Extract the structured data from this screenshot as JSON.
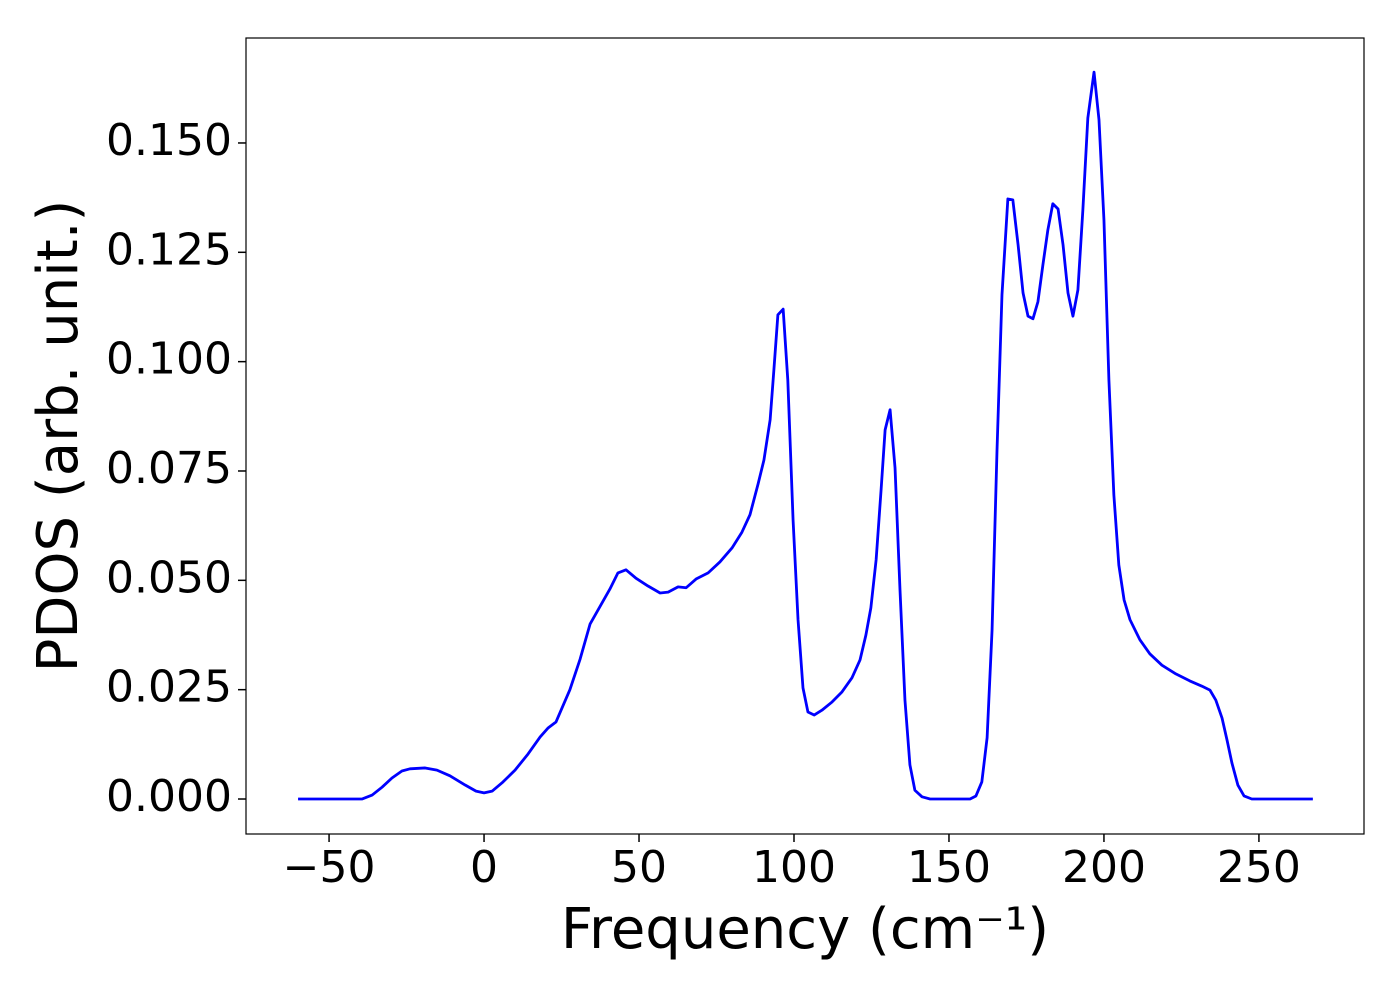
{
  "chart_data": {
    "type": "line",
    "xlabel": "Frequency (cm⁻¹)",
    "ylabel": "PDOS (arb. unit.)",
    "color": "#0000ff",
    "x": [
      -60,
      -39.4,
      -36.1,
      -32.9,
      -29.7,
      -26.5,
      -23.9,
      -19,
      -15.2,
      -11,
      -6.1,
      -2.6,
      0,
      2.6,
      5.8,
      10,
      14.2,
      18.1,
      20.6,
      23.2,
      27.7,
      31,
      34.2,
      37.4,
      40.6,
      43.2,
      45.8,
      49,
      52.9,
      56.8,
      59.4,
      62.6,
      65.2,
      68.4,
      72.3,
      76.1,
      80,
      83.2,
      85.8,
      88.4,
      90.3,
      92.3,
      93.5,
      94.8,
      96.5,
      98,
      99.7,
      101.3,
      102.9,
      104.5,
      106.5,
      109,
      112.3,
      115.5,
      118.7,
      121.3,
      123.2,
      124.8,
      126.5,
      128.1,
      129.4,
      131,
      132.6,
      134.2,
      135.8,
      137.4,
      139,
      141.3,
      143.9,
      156.8,
      158.7,
      160.6,
      162.3,
      163.9,
      165.5,
      167.1,
      169,
      170.6,
      172.3,
      173.9,
      175.5,
      177.1,
      178.7,
      180.3,
      181.9,
      183.5,
      185.2,
      186.8,
      188.4,
      190,
      191.6,
      193.2,
      194.8,
      196.8,
      198.4,
      200,
      201.6,
      203.2,
      204.8,
      206.5,
      208.4,
      211.6,
      214.8,
      218.7,
      223.2,
      227.7,
      231.6,
      234.2,
      236.1,
      238.1,
      239.7,
      241.3,
      243.2,
      245.2,
      247.7,
      267.4
    ],
    "values": [
      0,
      0,
      0.0009,
      0.0027,
      0.0048,
      0.0064,
      0.0069,
      0.0071,
      0.0066,
      0.0053,
      0.0032,
      0.0018,
      0.0014,
      0.0018,
      0.0037,
      0.0066,
      0.0103,
      0.0142,
      0.0162,
      0.0176,
      0.025,
      0.032,
      0.04,
      0.044,
      0.048,
      0.0517,
      0.0524,
      0.0505,
      0.0487,
      0.0471,
      0.0473,
      0.0485,
      0.0483,
      0.0503,
      0.0517,
      0.0542,
      0.0574,
      0.061,
      0.065,
      0.072,
      0.0775,
      0.0867,
      0.098,
      0.1107,
      0.112,
      0.0958,
      0.0638,
      0.041,
      0.0254,
      0.0199,
      0.0192,
      0.0203,
      0.0222,
      0.0245,
      0.0277,
      0.0318,
      0.0375,
      0.0437,
      0.0547,
      0.0707,
      0.0844,
      0.089,
      0.0757,
      0.0478,
      0.0226,
      0.0078,
      0.002,
      0.0005,
      0,
      0,
      0.0007,
      0.0039,
      0.014,
      0.0386,
      0.0798,
      0.1153,
      0.1372,
      0.137,
      0.1267,
      0.1157,
      0.1104,
      0.1098,
      0.1137,
      0.1221,
      0.1301,
      0.1361,
      0.1349,
      0.1267,
      0.1157,
      0.1104,
      0.1164,
      0.1347,
      0.1557,
      0.1662,
      0.1553,
      0.1324,
      0.0958,
      0.0695,
      0.0535,
      0.0455,
      0.041,
      0.0364,
      0.0332,
      0.0306,
      0.0286,
      0.027,
      0.0258,
      0.0249,
      0.0226,
      0.0185,
      0.0135,
      0.0082,
      0.0032,
      0.0007,
      0,
      0
    ],
    "xlim": [
      -76.8,
      283.9
    ],
    "ylim": [
      -0.008,
      0.174
    ],
    "xticks": [
      {
        "value": -50,
        "label": "−50"
      },
      0,
      50,
      100,
      150,
      200,
      250
    ],
    "yticks": [
      {
        "value": 0,
        "label": "0.000"
      },
      {
        "value": 0.025,
        "label": "0.025"
      },
      {
        "value": 0.05,
        "label": "0.050"
      },
      {
        "value": 0.075,
        "label": "0.075"
      },
      {
        "value": 0.1,
        "label": "0.100"
      },
      {
        "value": 0.125,
        "label": "0.125"
      },
      {
        "value": 0.15,
        "label": "0.150"
      }
    ]
  }
}
